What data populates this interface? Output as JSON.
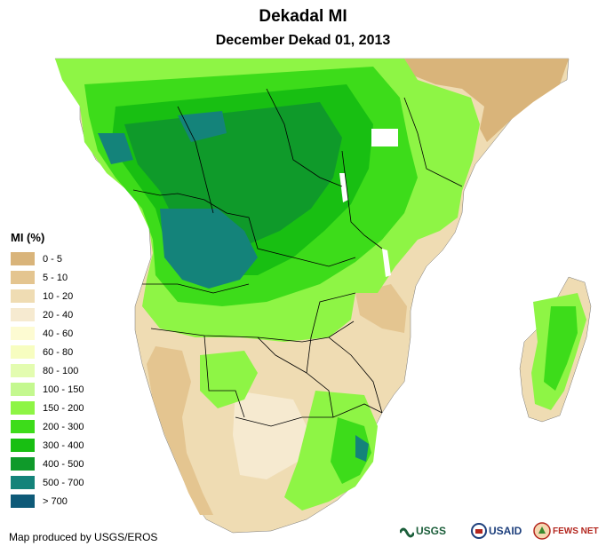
{
  "header": {
    "title": "Dekadal MI",
    "subtitle": "December Dekad 01, 2013"
  },
  "legend": {
    "title": "MI (%)",
    "items": [
      {
        "label": "0 - 5",
        "color": "#d9b47a"
      },
      {
        "label": "5 - 10",
        "color": "#e4c590"
      },
      {
        "label": "10 - 20",
        "color": "#efdcb3"
      },
      {
        "label": "20 - 40",
        "color": "#f6ead0"
      },
      {
        "label": "40 - 60",
        "color": "#fdfbd2"
      },
      {
        "label": "60 - 80",
        "color": "#f7fdc0"
      },
      {
        "label": "80 - 100",
        "color": "#e3fcb0"
      },
      {
        "label": "100 - 150",
        "color": "#c4f88f"
      },
      {
        "label": "150 - 200",
        "color": "#8ef545"
      },
      {
        "label": "200 - 300",
        "color": "#3ddc1a"
      },
      {
        "label": "300 - 400",
        "color": "#18bf12"
      },
      {
        "label": "400 - 500",
        "color": "#0f9a2a"
      },
      {
        "label": "500 - 700",
        "color": "#14837a"
      },
      {
        "label": "> 700",
        "color": "#0e5a78"
      }
    ]
  },
  "footer": {
    "credit": "Map produced by USGS/EROS"
  },
  "logos": {
    "usgs": "USGS",
    "usaid": "USAID",
    "fews": "FEWS NET"
  },
  "colors": {
    "land_dry": "#efdcb3",
    "land_wet": "#3ddc1a",
    "land_very_wet": "#14837a",
    "border": "#000000",
    "water": "#ffffff"
  }
}
